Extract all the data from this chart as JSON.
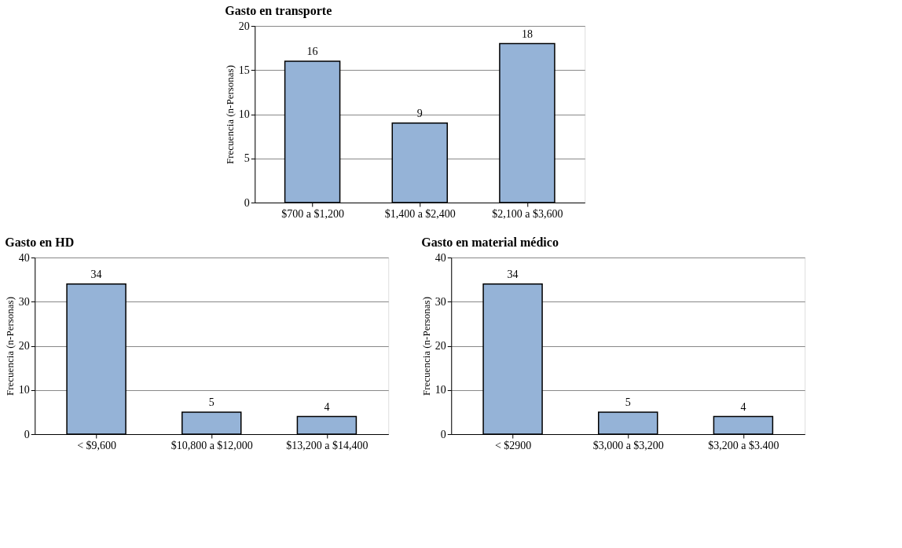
{
  "chart_data": [
    {
      "type": "bar",
      "title": "Gasto en transporte",
      "ylabel": "Frecuencia (n-Personas)",
      "categories": [
        "$700 a $1,200",
        "$1,400 a $2,400",
        "$2,100 a $3,600"
      ],
      "values": [
        16,
        9,
        18
      ],
      "color": "#95b3d7",
      "ylim": [
        0,
        20
      ],
      "yticks": [
        0,
        5,
        10,
        15,
        20
      ],
      "grid": "y",
      "data_labels": true
    },
    {
      "type": "bar",
      "title": "Gasto en HD",
      "ylabel": "Frecuencia (n-Personas)",
      "categories": [
        "< $9,600",
        "$10,800 a $12,000",
        "$13,200 a $14,400"
      ],
      "values": [
        34,
        5,
        4
      ],
      "color": "#95b3d7",
      "ylim": [
        0,
        40
      ],
      "yticks": [
        0,
        10,
        20,
        30,
        40
      ],
      "grid": "y",
      "data_labels": true
    },
    {
      "type": "bar",
      "title": "Gasto en material médico",
      "ylabel": "Frecuencia (n-Personas)",
      "categories": [
        "< $2900",
        "$3,000 a $3,200",
        "$3,200 a $3.400"
      ],
      "values": [
        34,
        5,
        4
      ],
      "color": "#95b3d7",
      "ylim": [
        0,
        40
      ],
      "yticks": [
        0,
        10,
        20,
        30,
        40
      ],
      "grid": "y",
      "data_labels": true
    }
  ]
}
